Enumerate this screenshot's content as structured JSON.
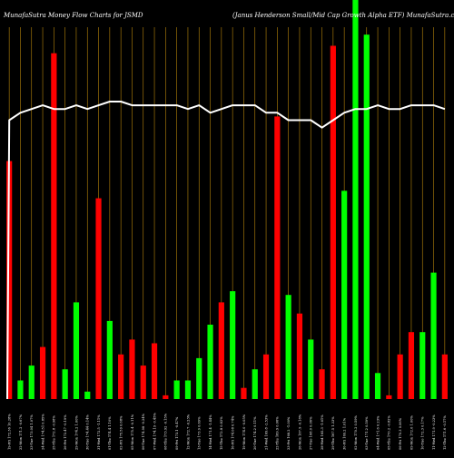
{
  "header": {
    "left_title": "MunafaSutra  Money Flow  Charts for JSMD",
    "right_title": "(Janus Henderson  Small/Mid Cap Growth Alpha  ETF) MunafaSutra.com"
  },
  "colors": {
    "background": "#000000",
    "up": "#00ff00",
    "down": "#ff0000",
    "gridline": "#b8860b",
    "price_line": "#ffffff",
    "text": "#ffffff"
  },
  "chart_data": {
    "type": "bar",
    "title": "",
    "xlabel": "",
    "ylabel": "",
    "ylim": [
      0,
      100
    ],
    "grid": true,
    "legend": "none",
    "categories": [
      "19-Fri 172.36 10.28%",
      "22-Mon 171.2 -0.67%",
      "23-Tue 173.04 1.07%",
      "24-Wed 174.51 0.85%",
      "25-Thu 172.8 -0.98%",
      "26-Fri 172.47 -0.19%",
      "29-Mon 174.2 1.00%",
      "30-Tue 174.44 0.14%",
      "31-Wed 172.5 -1.11%",
      "01-Thu 174.4 1.10%",
      "02-Fri 175.59 0.68%",
      "05-Mon 175.4 -0.11%",
      "06-Tue 174.98 -0.24%",
      "07-Wed 174.19 -0.45%",
      "08-Thu 173.92 -0.15%",
      "09-Fri 173.1 -0.47%",
      "12-Mon 172.7 -0.23%",
      "13-Tue 173.9 0.69%",
      "14-Wed 171.4 -1.44%",
      "15-Thu 172.8 0.82%",
      "16-Fri 174.08 0.74%",
      "19-Mon 174.0 -0.05%",
      "20-Tue 174.2 0.11%",
      "21-Wed 169.8 -2.53%",
      "22-Thu 169.9 0.06%",
      "23-Fri 168.2 -1.00%",
      "26-Mon 167.9 -0.18%",
      "27-Tue 168.0 0.06%",
      "28-Wed 165.3 -1.61%",
      "29-Thu 167.5 1.33%",
      "30-Fri 169.2 1.01%",
      "02-Mon 170.2 0.59%",
      "03-Tue 171.2 0.59%",
      "04-Wed 171.6 0.23%",
      "05-Thu 170.2 -0.82%",
      "06-Fri 170.3 0.06%",
      "09-Mon 172.0 1.00%",
      "10-Tue 172.3 0.17%",
      "11-Wed 171.9 -0.23%",
      "12-Thu 171.6 -0.17%"
    ],
    "volume_bars": [
      {
        "value": 64,
        "direction": "down"
      },
      {
        "value": 5,
        "direction": "up"
      },
      {
        "value": 9,
        "direction": "up"
      },
      {
        "value": 14,
        "direction": "down"
      },
      {
        "value": 93,
        "direction": "down"
      },
      {
        "value": 8,
        "direction": "up"
      },
      {
        "value": 26,
        "direction": "up"
      },
      {
        "value": 2,
        "direction": "up"
      },
      {
        "value": 54,
        "direction": "down"
      },
      {
        "value": 21,
        "direction": "up"
      },
      {
        "value": 12,
        "direction": "down"
      },
      {
        "value": 16,
        "direction": "down"
      },
      {
        "value": 9,
        "direction": "down"
      },
      {
        "value": 15,
        "direction": "down"
      },
      {
        "value": 1,
        "direction": "down"
      },
      {
        "value": 5,
        "direction": "up"
      },
      {
        "value": 5,
        "direction": "up"
      },
      {
        "value": 11,
        "direction": "up"
      },
      {
        "value": 20,
        "direction": "up"
      },
      {
        "value": 26,
        "direction": "down"
      },
      {
        "value": 29,
        "direction": "up"
      },
      {
        "value": 3,
        "direction": "down"
      },
      {
        "value": 8,
        "direction": "up"
      },
      {
        "value": 12,
        "direction": "down"
      },
      {
        "value": 76,
        "direction": "down"
      },
      {
        "value": 28,
        "direction": "up"
      },
      {
        "value": 23,
        "direction": "down"
      },
      {
        "value": 16,
        "direction": "up"
      },
      {
        "value": 8,
        "direction": "down"
      },
      {
        "value": 95,
        "direction": "down"
      },
      {
        "value": 56,
        "direction": "up"
      },
      {
        "value": 100,
        "direction": "up"
      },
      {
        "value": 98,
        "direction": "up"
      },
      {
        "value": 7,
        "direction": "up"
      },
      {
        "value": 1,
        "direction": "down"
      },
      {
        "value": 12,
        "direction": "down"
      },
      {
        "value": 18,
        "direction": "down"
      },
      {
        "value": 18,
        "direction": "up"
      },
      {
        "value": 34,
        "direction": "up"
      },
      {
        "value": 12,
        "direction": "down"
      }
    ],
    "price_line": [
      {
        "x": 0,
        "y": 75
      },
      {
        "x": 1,
        "y": 77
      },
      {
        "x": 2,
        "y": 78
      },
      {
        "x": 3,
        "y": 79
      },
      {
        "x": 4,
        "y": 78
      },
      {
        "x": 5,
        "y": 78
      },
      {
        "x": 6,
        "y": 79
      },
      {
        "x": 7,
        "y": 78
      },
      {
        "x": 8,
        "y": 79
      },
      {
        "x": 9,
        "y": 80
      },
      {
        "x": 10,
        "y": 80
      },
      {
        "x": 11,
        "y": 79
      },
      {
        "x": 12,
        "y": 79
      },
      {
        "x": 13,
        "y": 79
      },
      {
        "x": 14,
        "y": 79
      },
      {
        "x": 15,
        "y": 79
      },
      {
        "x": 16,
        "y": 78
      },
      {
        "x": 17,
        "y": 79
      },
      {
        "x": 18,
        "y": 77
      },
      {
        "x": 19,
        "y": 78
      },
      {
        "x": 20,
        "y": 79
      },
      {
        "x": 21,
        "y": 79
      },
      {
        "x": 22,
        "y": 79
      },
      {
        "x": 23,
        "y": 77
      },
      {
        "x": 24,
        "y": 77
      },
      {
        "x": 25,
        "y": 75
      },
      {
        "x": 26,
        "y": 75
      },
      {
        "x": 27,
        "y": 75
      },
      {
        "x": 28,
        "y": 73
      },
      {
        "x": 29,
        "y": 75
      },
      {
        "x": 30,
        "y": 77
      },
      {
        "x": 31,
        "y": 78
      },
      {
        "x": 32,
        "y": 78
      },
      {
        "x": 33,
        "y": 79
      },
      {
        "x": 34,
        "y": 78
      },
      {
        "x": 35,
        "y": 78
      },
      {
        "x": 36,
        "y": 79
      },
      {
        "x": 37,
        "y": 79
      },
      {
        "x": 38,
        "y": 79
      },
      {
        "x": 39,
        "y": 78
      }
    ],
    "price_line_start": 0
  }
}
